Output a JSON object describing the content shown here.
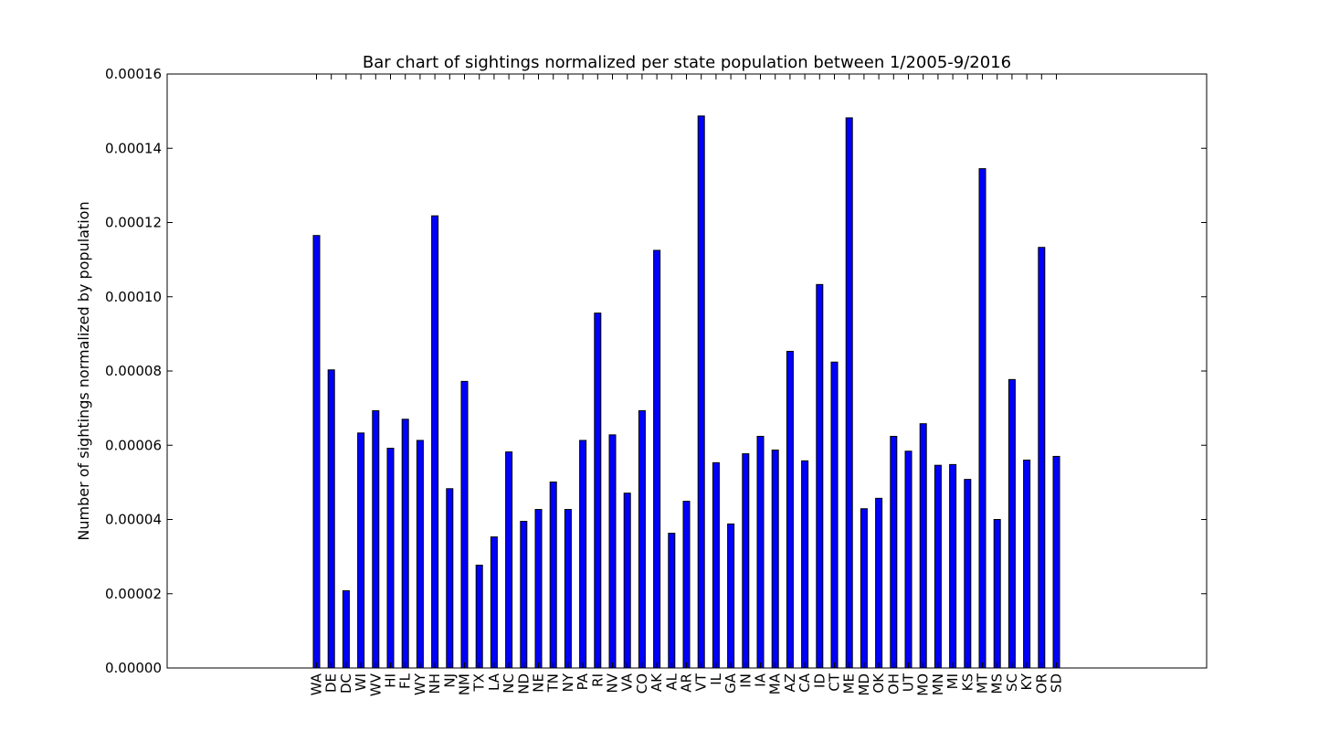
{
  "chart_data": {
    "type": "bar",
    "title": "Bar chart of sightings normalized per state population between 1/2005-9/2016",
    "xlabel": "",
    "ylabel": "Number of sightings normalized by population",
    "ylim": [
      0,
      0.00016
    ],
    "yticks": [
      "0.00000",
      "0.00002",
      "0.00004",
      "0.00006",
      "0.00008",
      "0.00010",
      "0.00012",
      "0.00014",
      "0.00016"
    ],
    "ytick_values": [
      0,
      2e-05,
      4e-05,
      6e-05,
      8e-05,
      0.0001,
      0.00012,
      0.00014,
      0.00016
    ],
    "grid": false,
    "legend": "none",
    "bar_color": "#0000ff",
    "categories": [
      "WA",
      "DE",
      "DC",
      "WI",
      "WV",
      "HI",
      "FL",
      "WY",
      "NH",
      "NJ",
      "NM",
      "TX",
      "LA",
      "NC",
      "ND",
      "NE",
      "TN",
      "NY",
      "PA",
      "RI",
      "NV",
      "VA",
      "CO",
      "AK",
      "AL",
      "AR",
      "VT",
      "IL",
      "GA",
      "IN",
      "IA",
      "MA",
      "AZ",
      "CA",
      "ID",
      "CT",
      "ME",
      "MD",
      "OK",
      "OH",
      "UT",
      "MO",
      "MN",
      "MI",
      "KS",
      "MT",
      "MS",
      "SC",
      "KY",
      "OR",
      "SD"
    ],
    "values": [
      0.0001165,
      8.03e-05,
      2.08e-05,
      6.33e-05,
      6.93e-05,
      5.92e-05,
      6.7e-05,
      6.13e-05,
      0.0001218,
      4.83e-05,
      7.72e-05,
      2.77e-05,
      3.53e-05,
      5.82e-05,
      3.95e-05,
      4.27e-05,
      5.01e-05,
      4.27e-05,
      6.13e-05,
      9.56e-05,
      6.28e-05,
      4.71e-05,
      6.93e-05,
      0.0001125,
      3.63e-05,
      4.49e-05,
      0.0001487,
      5.53e-05,
      3.88e-05,
      5.77e-05,
      6.24e-05,
      5.87e-05,
      8.53e-05,
      5.58e-05,
      0.0001033,
      8.24e-05,
      0.0001482,
      4.29e-05,
      4.57e-05,
      6.24e-05,
      5.84e-05,
      6.58e-05,
      5.46e-05,
      5.48e-05,
      5.08e-05,
      0.0001345,
      4e-05,
      7.77e-05,
      5.6e-05,
      0.0001133,
      5.7e-05
    ]
  }
}
